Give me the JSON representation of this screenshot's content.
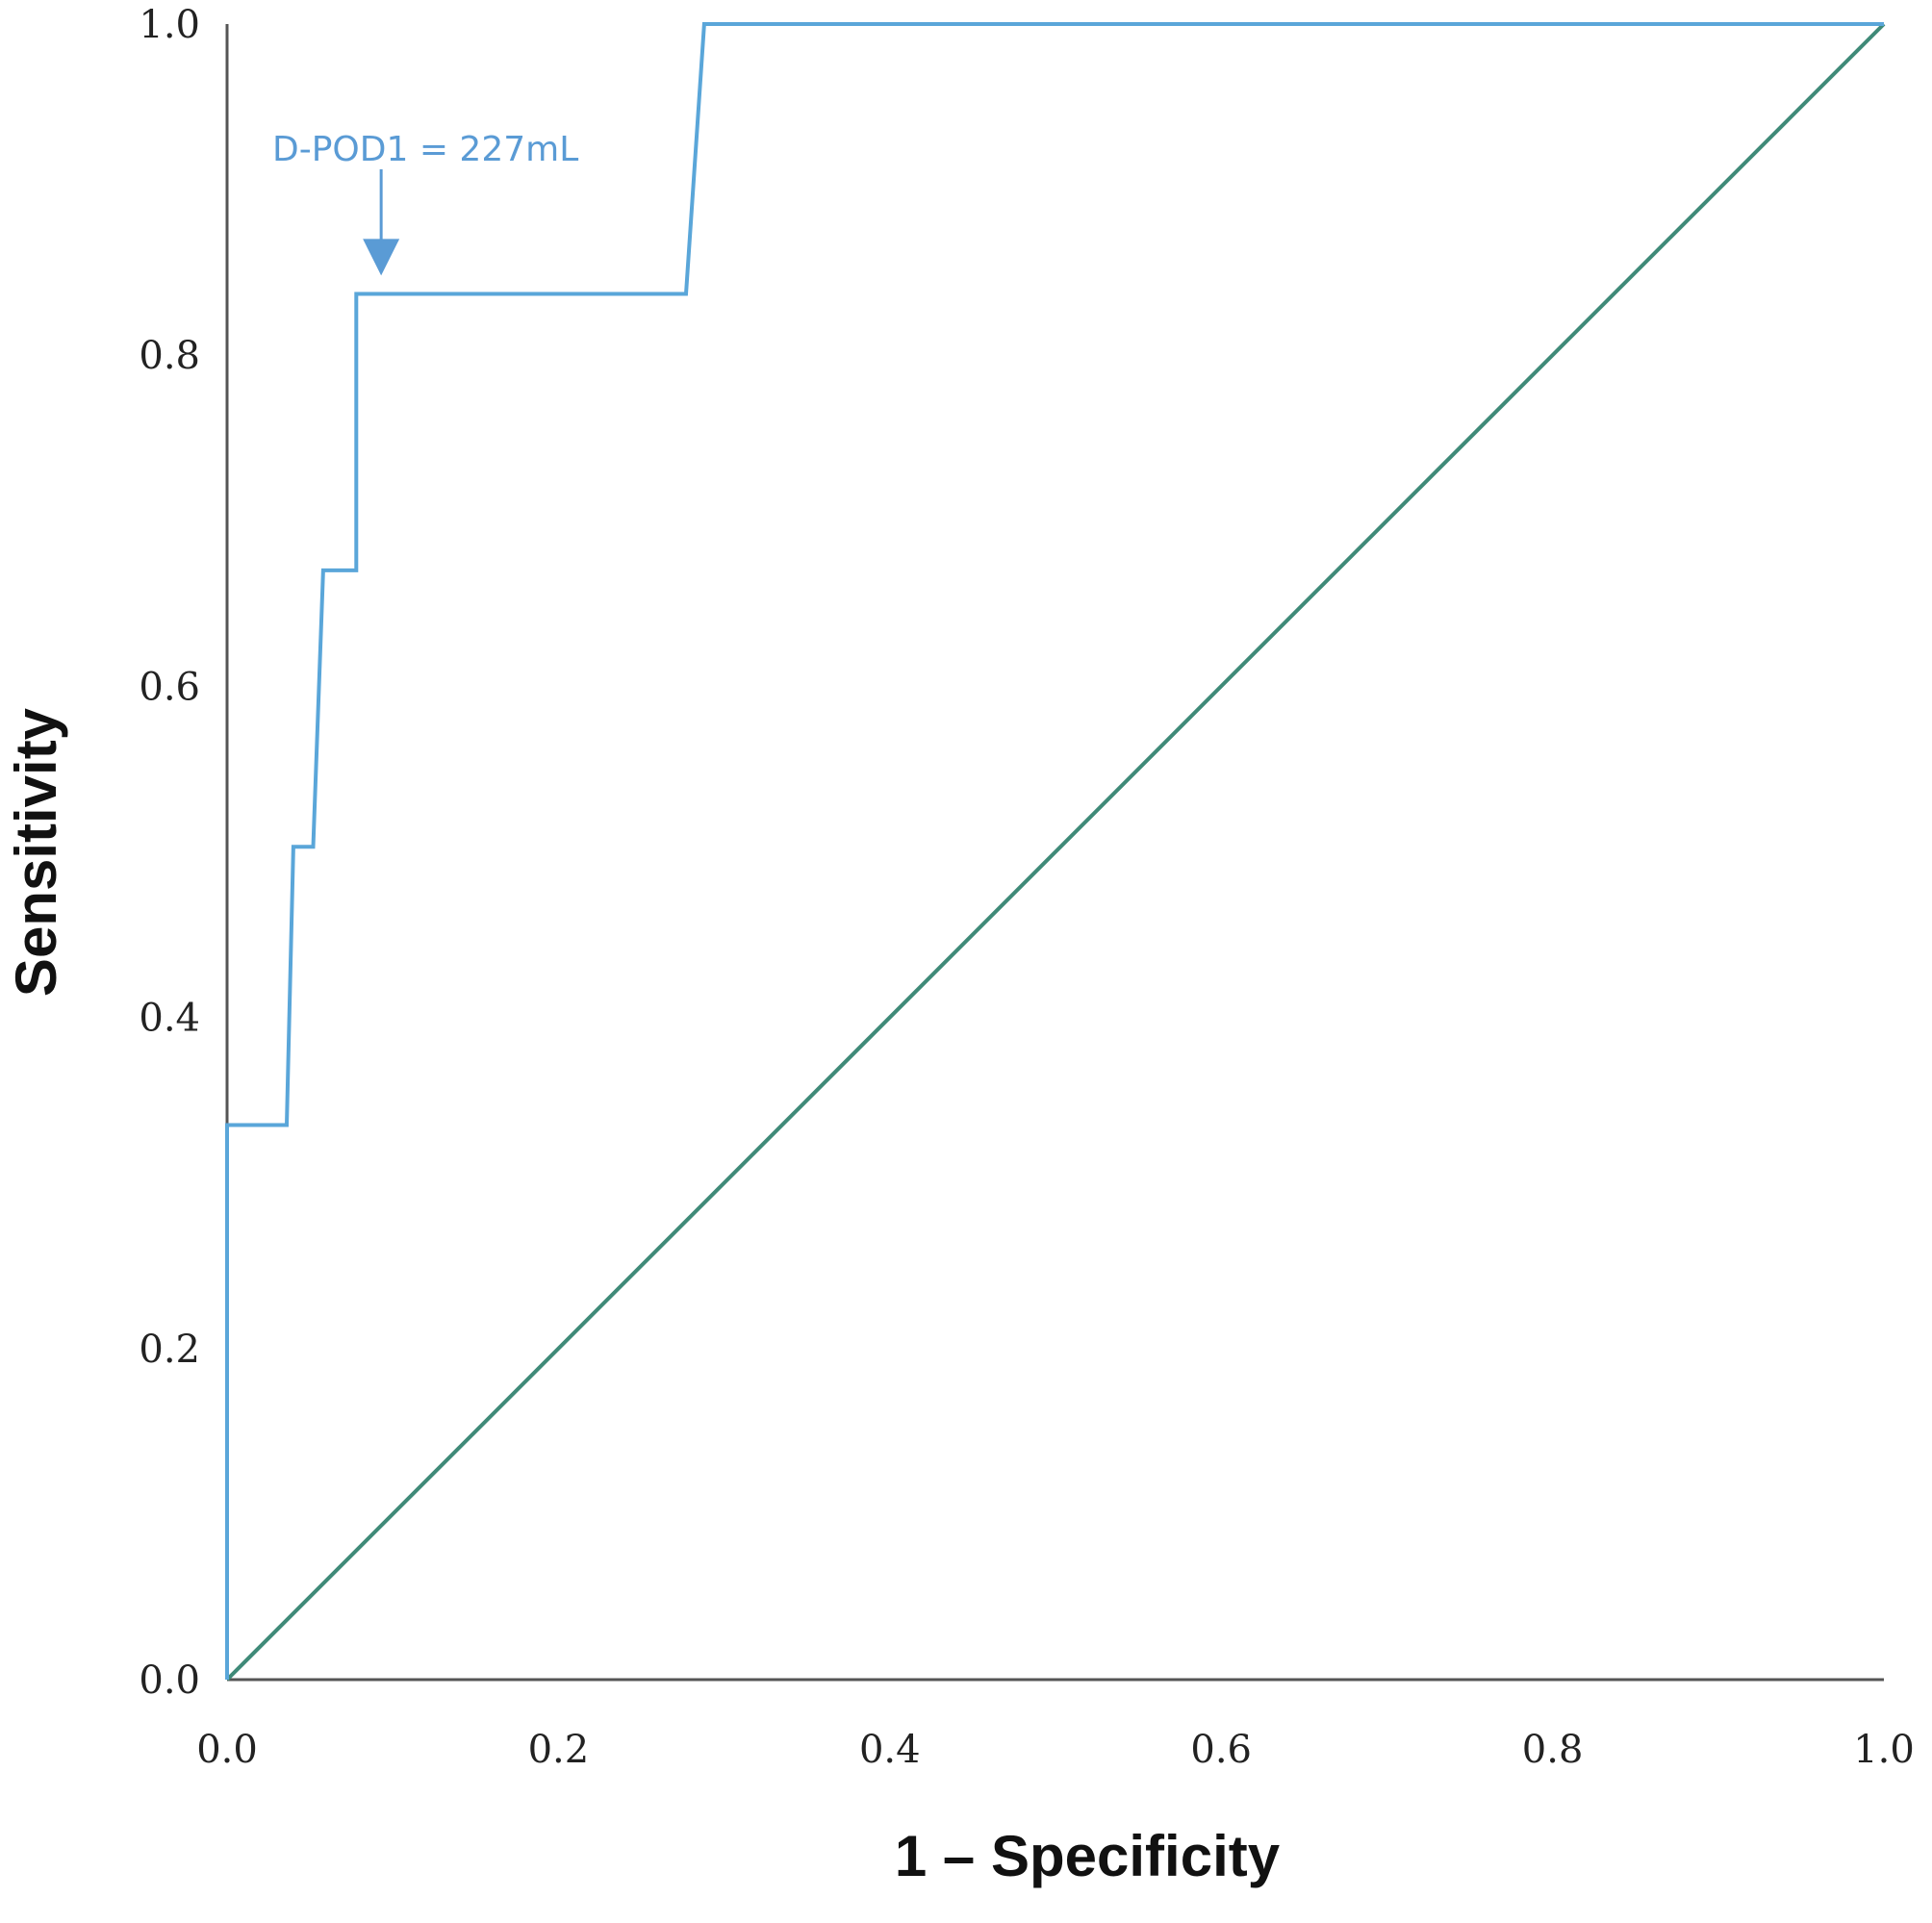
{
  "chart_data": {
    "type": "line",
    "title": "",
    "xlabel": "1 – Specificity",
    "ylabel": "Sensitivity",
    "xlim": [
      0,
      1
    ],
    "ylim": [
      0,
      1
    ],
    "xticks": [
      "0.0",
      "0.2",
      "0.4",
      "0.6",
      "0.8",
      "1.0"
    ],
    "yticks": [
      "0.0",
      "0.2",
      "0.4",
      "0.6",
      "0.8",
      "1.0"
    ],
    "grid": false,
    "legend": "none",
    "series": [
      {
        "color": "#5aa6d9",
        "x": [
          0,
          0,
          0.036,
          0.04,
          0.052,
          0.058,
          0.078,
          0.078,
          0.277,
          0.288,
          1.0
        ],
        "y": [
          0,
          0.335,
          0.335,
          0.503,
          0.503,
          0.67,
          0.67,
          0.837,
          0.837,
          1.0,
          1.0
        ]
      },
      {
        "color": "#3f8a78",
        "x": [
          0,
          1
        ],
        "y": [
          0,
          1
        ]
      }
    ],
    "annotations": [
      {
        "text": "D-POD1 = 227mL",
        "x": 0.093,
        "y": 0.84,
        "color": "#5a9bd5"
      }
    ]
  }
}
